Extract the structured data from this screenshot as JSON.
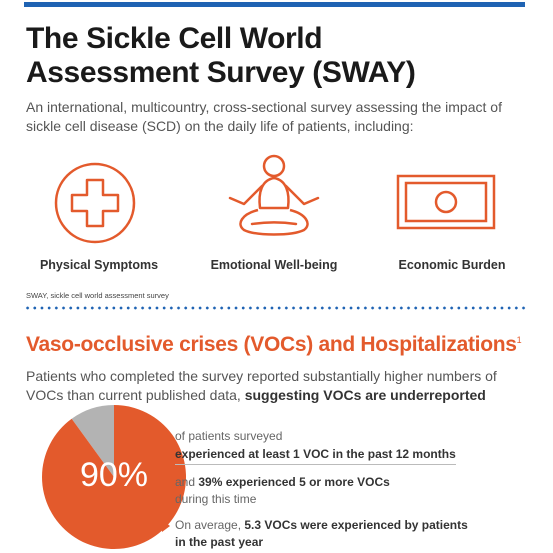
{
  "header": {
    "title_line1": "The Sickle Cell World",
    "title_line2": "Assessment Survey (SWAY)",
    "subtitle": "An international, multicountry, cross-sectional survey assessing the impact of sickle cell disease (SCD) on the daily life of patients, including:"
  },
  "impacts": [
    {
      "label": "Physical Symptoms",
      "icon": "medical-cross-icon"
    },
    {
      "label": "Emotional Well-being",
      "icon": "meditation-icon"
    },
    {
      "label": "Economic Burden",
      "icon": "banknote-icon"
    }
  ],
  "footnote": "SWAY, sickle cell world assessment survey",
  "voc": {
    "title": "Vaso-occlusive crises (VOCs) and Hospitalizations",
    "title_sup": "1",
    "intro_plain": "Patients who completed the survey reported substantially higher numbers of VOCs than current published data, ",
    "intro_bold": "suggesting VOCs are underreported",
    "stat": {
      "percent": 90,
      "percent_label": "90%",
      "line1": "of patients surveyed",
      "line2": "experienced at least 1 VOC in the past 12 months",
      "line3_plain": "and ",
      "line3_bold": "39% experienced 5 or more VOCs",
      "line4": "during this time",
      "line5_plain": "On average, ",
      "line5_bold": "5.3 VOCs were experienced by patients",
      "line6_bold": "in the past year"
    }
  },
  "colors": {
    "accent": "#e35a2c",
    "rule": "#1f63b3",
    "pie_remainder": "#b3b3b3"
  }
}
